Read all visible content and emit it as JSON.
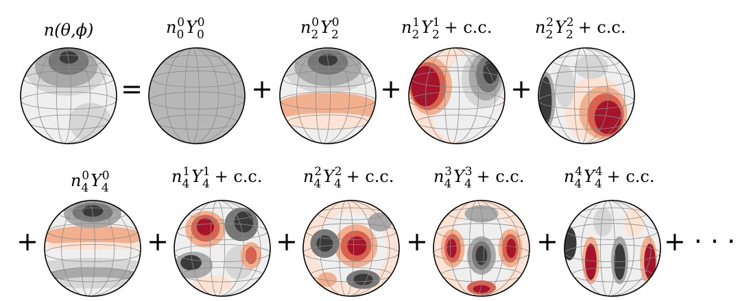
{
  "colors": {
    "outline": "#000000",
    "grid": "#8a8a8a",
    "uniform": "#b7b7b7",
    "neg1": "#3a3a3a",
    "neg2": "#777777",
    "neg3": "#a9a9a9",
    "neg4": "#d6d6d6",
    "neutral": "#efefef",
    "pos1": "#fde3d3",
    "pos2": "#f2b08f",
    "pos3": "#d9624e",
    "pos4": "#a6142c"
  },
  "top_row": {
    "lhs": {
      "label": "n(θ,ϕ)",
      "func": "n(θ,ϕ)",
      "icon": "sphere-density"
    },
    "equals": "=",
    "terms": [
      {
        "n": "n",
        "lower": "0",
        "upper": "0",
        "Y": "Y",
        "ylower": "0",
        "yupper": "0",
        "suffix": "",
        "icon": "sphere-uniform",
        "op": ""
      },
      {
        "n": "n",
        "lower": "2",
        "upper": "0",
        "Y": "Y",
        "ylower": "2",
        "yupper": "0",
        "suffix": "",
        "icon": "sphere-harmonic",
        "op": "+"
      },
      {
        "n": "n",
        "lower": "2",
        "upper": "1",
        "Y": "Y",
        "ylower": "2",
        "yupper": "1",
        "suffix": "+ c.c.",
        "icon": "sphere-harmonic",
        "op": "+"
      },
      {
        "n": "n",
        "lower": "2",
        "upper": "2",
        "Y": "Y",
        "ylower": "2",
        "yupper": "2",
        "suffix": "+ c.c.",
        "icon": "sphere-harmonic",
        "op": "+"
      }
    ]
  },
  "bottom_row": {
    "lead_op": "+",
    "terms": [
      {
        "n": "n",
        "lower": "4",
        "upper": "0",
        "Y": "Y",
        "ylower": "4",
        "yupper": "0",
        "suffix": "",
        "icon": "sphere-harmonic",
        "op": ""
      },
      {
        "n": "n",
        "lower": "4",
        "upper": "1",
        "Y": "Y",
        "ylower": "4",
        "yupper": "1",
        "suffix": "+ c.c.",
        "icon": "sphere-harmonic",
        "op": "+"
      },
      {
        "n": "n",
        "lower": "4",
        "upper": "2",
        "Y": "Y",
        "ylower": "4",
        "yupper": "2",
        "suffix": "+ c.c.",
        "icon": "sphere-harmonic",
        "op": "+"
      },
      {
        "n": "n",
        "lower": "4",
        "upper": "3",
        "Y": "Y",
        "ylower": "4",
        "yupper": "3",
        "suffix": "+ c.c.",
        "icon": "sphere-harmonic",
        "op": "+"
      },
      {
        "n": "n",
        "lower": "4",
        "upper": "4",
        "Y": "Y",
        "ylower": "4",
        "yupper": "4",
        "suffix": "+ c.c.",
        "icon": "sphere-harmonic",
        "op": "+"
      }
    ],
    "trailing": "+ · · ·"
  }
}
